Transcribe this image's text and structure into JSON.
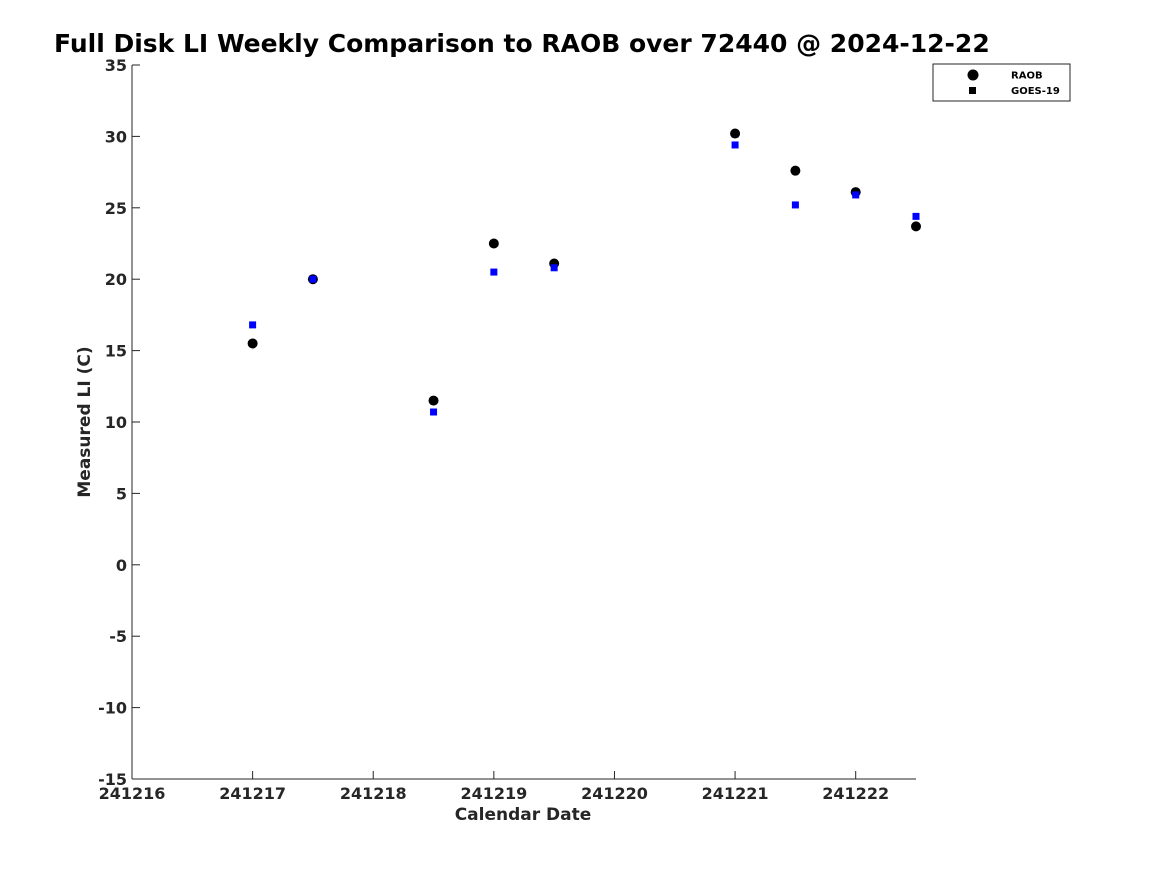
{
  "chart_data": {
    "type": "scatter",
    "title": "Full Disk LI Weekly Comparison to RAOB over 72440 @ 2024-12-22",
    "xlabel": "Calendar Date",
    "ylabel": "Measured LI (C)",
    "x_axis_type": "date",
    "x_tick_format": "yyMMdd",
    "xlim": [
      "2024-12-16",
      "2024-12-22 12:00"
    ],
    "ylim": [
      -15,
      35
    ],
    "x_ticks": [
      "241216",
      "241217",
      "241218",
      "241219",
      "241220",
      "241221",
      "241222"
    ],
    "y_ticks": [
      "-15",
      "-10",
      "-5",
      "0",
      "5",
      "10",
      "15",
      "20",
      "25",
      "30",
      "35"
    ],
    "grid": false,
    "legend_position": "top-right",
    "series": [
      {
        "name": "RAOB",
        "marker": "circle",
        "color": "#000000",
        "points": [
          {
            "x": "2024-12-17 00:00",
            "y": 15.5
          },
          {
            "x": "2024-12-17 12:00",
            "y": 20.0
          },
          {
            "x": "2024-12-18 12:00",
            "y": 11.5
          },
          {
            "x": "2024-12-19 00:00",
            "y": 22.5
          },
          {
            "x": "2024-12-19 12:00",
            "y": 21.1
          },
          {
            "x": "2024-12-21 00:00",
            "y": 30.2
          },
          {
            "x": "2024-12-21 12:00",
            "y": 27.6
          },
          {
            "x": "2024-12-22 00:00",
            "y": 26.1
          },
          {
            "x": "2024-12-22 12:00",
            "y": 23.7
          }
        ]
      },
      {
        "name": "GOES-19",
        "marker": "square",
        "color": "#0000ff",
        "points": [
          {
            "x": "2024-12-17 00:00",
            "y": 16.8
          },
          {
            "x": "2024-12-17 12:00",
            "y": 20.0
          },
          {
            "x": "2024-12-18 12:00",
            "y": 10.7
          },
          {
            "x": "2024-12-19 00:00",
            "y": 20.5
          },
          {
            "x": "2024-12-19 12:00",
            "y": 20.8
          },
          {
            "x": "2024-12-21 00:00",
            "y": 29.4
          },
          {
            "x": "2024-12-21 12:00",
            "y": 25.2
          },
          {
            "x": "2024-12-22 00:00",
            "y": 25.9
          },
          {
            "x": "2024-12-22 12:00",
            "y": 24.4
          }
        ]
      }
    ]
  }
}
